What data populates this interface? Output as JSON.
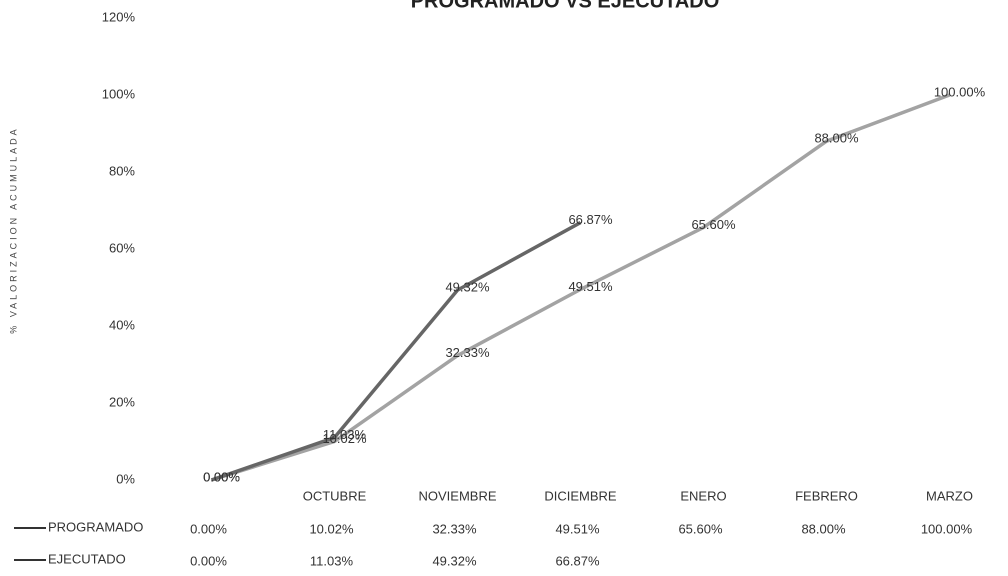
{
  "chart_data": {
    "type": "line",
    "title": "PROGRAMADO VS EJECUTADO",
    "y_label": "% VALORIZACION ACUMULADA",
    "categories": [
      null,
      "OCTUBRE",
      "NOVIEMBRE",
      "DICIEMBRE",
      "ENERO",
      "FEBRERO",
      "MARZO"
    ],
    "series": [
      {
        "name": "PROGRAMADO",
        "color": "#a3a3a3",
        "values": [
          0,
          10.02,
          32.33,
          49.51,
          65.6,
          88,
          100
        ],
        "value_labels": [
          "0.00%",
          "10.02%",
          "32.33%",
          "49.51%",
          "65.60%",
          "88.00%",
          "100.00%"
        ]
      },
      {
        "name": "EJECUTADO",
        "color": "#666666",
        "values": [
          0,
          11.03,
          49.32,
          66.87,
          null,
          null,
          null
        ],
        "value_labels": [
          "0.00%",
          "11.03%",
          "49.32%",
          "66.87%",
          null,
          null,
          null
        ]
      }
    ],
    "ylim": [
      0,
      120
    ],
    "yticks": [
      {
        "value": 0,
        "label": "0%"
      },
      {
        "value": 20,
        "label": "20%"
      },
      {
        "value": 40,
        "label": "40%"
      },
      {
        "value": 60,
        "label": "60%"
      },
      {
        "value": 80,
        "label": "80%"
      },
      {
        "value": 100,
        "label": "100%"
      },
      {
        "value": 120,
        "label": "120%"
      }
    ],
    "grid": false,
    "data_table": true
  }
}
